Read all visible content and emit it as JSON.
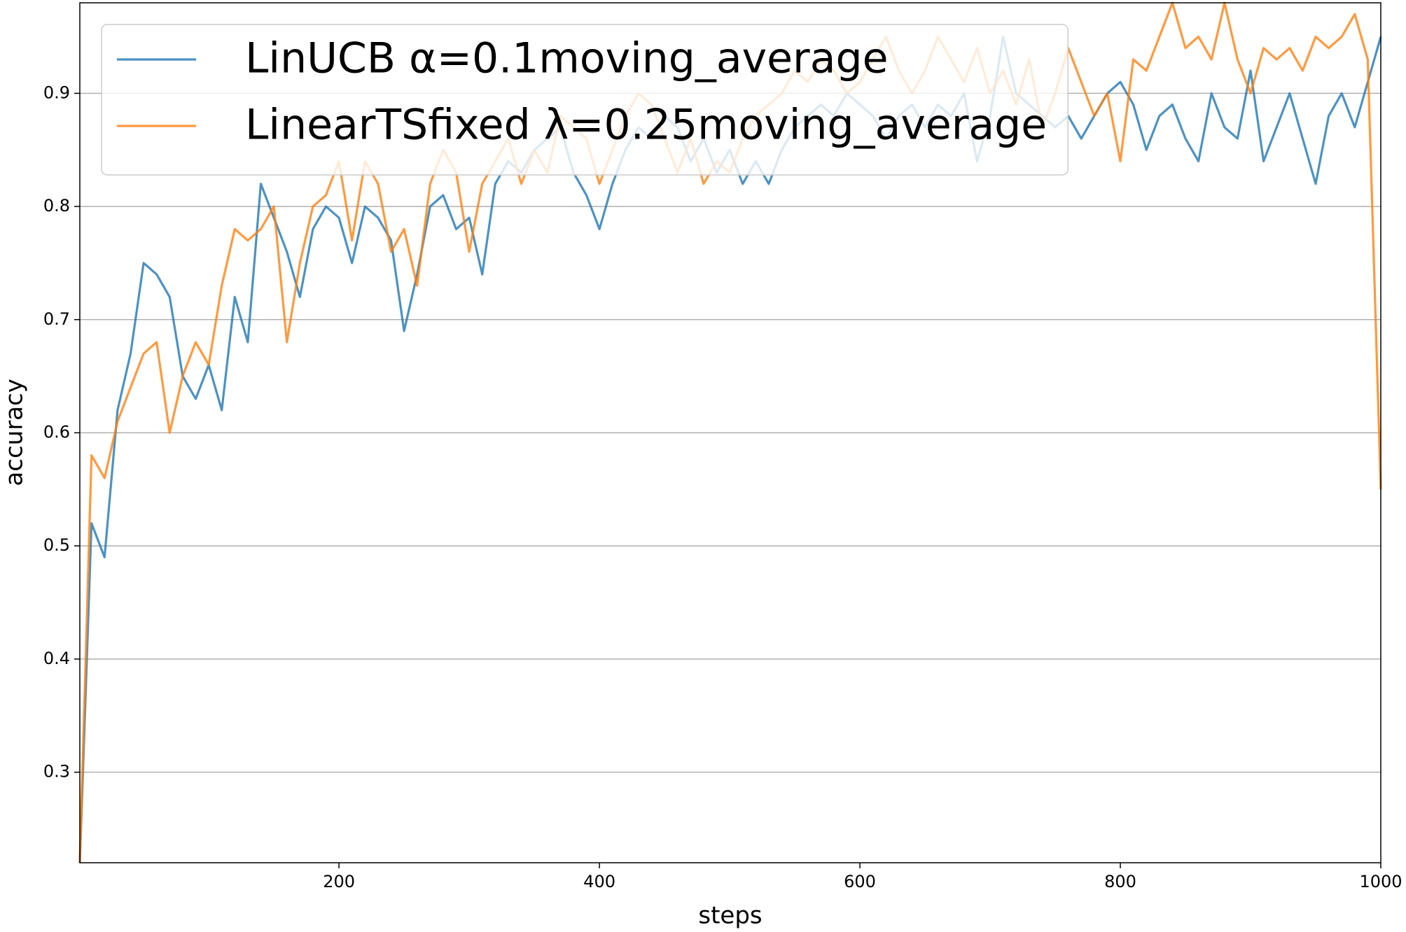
{
  "chart_data": {
    "type": "line",
    "xlabel": "steps",
    "ylabel": "accuracy",
    "x": [
      1,
      10,
      20,
      30,
      40,
      50,
      60,
      70,
      80,
      90,
      100,
      110,
      120,
      130,
      140,
      150,
      160,
      170,
      180,
      190,
      200,
      210,
      220,
      230,
      240,
      250,
      260,
      270,
      280,
      290,
      300,
      310,
      320,
      330,
      340,
      350,
      360,
      370,
      380,
      390,
      400,
      410,
      420,
      430,
      440,
      450,
      460,
      470,
      480,
      490,
      500,
      510,
      520,
      530,
      540,
      550,
      560,
      570,
      580,
      590,
      600,
      610,
      620,
      630,
      640,
      650,
      660,
      670,
      680,
      690,
      700,
      710,
      720,
      730,
      740,
      750,
      760,
      770,
      780,
      790,
      800,
      810,
      820,
      830,
      840,
      850,
      860,
      870,
      880,
      890,
      900,
      910,
      920,
      930,
      940,
      950,
      960,
      970,
      980,
      990,
      1000
    ],
    "series": [
      {
        "name": "LinUCB α=0.1moving_average",
        "color": "#1f77b4",
        "values": [
          0.22,
          0.52,
          0.49,
          0.62,
          0.67,
          0.75,
          0.74,
          0.72,
          0.65,
          0.63,
          0.66,
          0.62,
          0.72,
          0.68,
          0.82,
          0.79,
          0.76,
          0.72,
          0.78,
          0.8,
          0.79,
          0.75,
          0.8,
          0.79,
          0.77,
          0.69,
          0.74,
          0.8,
          0.81,
          0.78,
          0.79,
          0.74,
          0.82,
          0.84,
          0.83,
          0.85,
          0.86,
          0.87,
          0.83,
          0.81,
          0.78,
          0.82,
          0.85,
          0.87,
          0.86,
          0.88,
          0.87,
          0.84,
          0.86,
          0.83,
          0.85,
          0.82,
          0.84,
          0.82,
          0.85,
          0.87,
          0.88,
          0.89,
          0.88,
          0.9,
          0.89,
          0.88,
          0.86,
          0.88,
          0.89,
          0.87,
          0.89,
          0.88,
          0.9,
          0.84,
          0.88,
          0.95,
          0.9,
          0.89,
          0.88,
          0.87,
          0.88,
          0.86,
          0.88,
          0.9,
          0.91,
          0.89,
          0.85,
          0.88,
          0.89,
          0.86,
          0.84,
          0.9,
          0.87,
          0.86,
          0.92,
          0.84,
          0.87,
          0.9,
          0.86,
          0.82,
          0.88,
          0.9,
          0.87,
          0.91,
          0.95
        ]
      },
      {
        "name": "LinearTSfixed λ=0.25moving_average",
        "color": "#ff7f0e",
        "values": [
          0.22,
          0.58,
          0.56,
          0.61,
          0.64,
          0.67,
          0.68,
          0.6,
          0.65,
          0.68,
          0.66,
          0.73,
          0.78,
          0.77,
          0.78,
          0.8,
          0.68,
          0.75,
          0.8,
          0.81,
          0.84,
          0.77,
          0.84,
          0.82,
          0.76,
          0.78,
          0.73,
          0.82,
          0.85,
          0.83,
          0.76,
          0.82,
          0.84,
          0.86,
          0.82,
          0.85,
          0.83,
          0.88,
          0.87,
          0.86,
          0.82,
          0.85,
          0.88,
          0.9,
          0.89,
          0.86,
          0.83,
          0.86,
          0.82,
          0.84,
          0.83,
          0.86,
          0.88,
          0.89,
          0.9,
          0.92,
          0.91,
          0.93,
          0.92,
          0.9,
          0.91,
          0.93,
          0.95,
          0.92,
          0.9,
          0.92,
          0.95,
          0.93,
          0.91,
          0.94,
          0.9,
          0.92,
          0.89,
          0.93,
          0.87,
          0.9,
          0.94,
          0.91,
          0.88,
          0.9,
          0.84,
          0.93,
          0.92,
          0.95,
          0.98,
          0.94,
          0.95,
          0.93,
          0.98,
          0.93,
          0.9,
          0.94,
          0.93,
          0.94,
          0.92,
          0.95,
          0.94,
          0.95,
          0.97,
          0.93,
          0.55
        ]
      }
    ],
    "xlim": [
      1,
      1000
    ],
    "ylim": [
      0.22,
      0.98
    ],
    "xticks": [
      200,
      400,
      600,
      800,
      1000
    ],
    "yticks": [
      0.3,
      0.4,
      0.5,
      0.6,
      0.7,
      0.8,
      0.9
    ],
    "grid": "y",
    "legend": "upper left"
  }
}
